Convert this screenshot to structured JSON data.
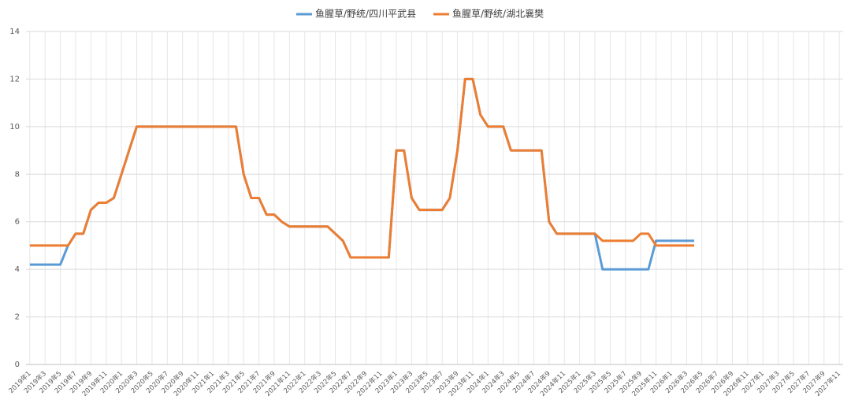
{
  "chart_data": {
    "type": "line",
    "categories": [
      "2019年1",
      null,
      "2019年3",
      null,
      "2019年5",
      null,
      "2019年7",
      null,
      "2019年9",
      null,
      "2019年11",
      null,
      "2020年1",
      null,
      "2020年3",
      null,
      "2020年5",
      null,
      "2020年7",
      null,
      "2020年9",
      null,
      "2020年11",
      null,
      "2021年1",
      null,
      "2021年3",
      null,
      "2021年5",
      null,
      "2021年7",
      null,
      "2021年9",
      null,
      "2021年11",
      null,
      "2022年1",
      null,
      "2022年3",
      null,
      "2022年5",
      null,
      "2022年7",
      null,
      "2022年9",
      null,
      "2022年11",
      null,
      "2023年1",
      null,
      "2023年3",
      null,
      "2023年5",
      null,
      "2023年7",
      null,
      "2023年9",
      null,
      "2023年11",
      null,
      "2024年1",
      null,
      "2024年3",
      null,
      "2024年5",
      null,
      "2024年7",
      null,
      "2024年9",
      null,
      "2024年11",
      null,
      "2025年1",
      null,
      "2025年3",
      null,
      "2025年5",
      null,
      "2025年7",
      null,
      "2025年9",
      null,
      "2025年11",
      null,
      "2026年1",
      null,
      "2026年3",
      null,
      "2026年5",
      null,
      "2026年7",
      null,
      "2026年9",
      null,
      "2026年11",
      null,
      "2027年1",
      null,
      "2027年3",
      null,
      "2027年5",
      null,
      "2027年7",
      null,
      "2027年9",
      null,
      "2027年11"
    ],
    "series": [
      {
        "name": "鱼腥草/野统/四川平武县",
        "color": "#5b9bd5",
        "values": [
          4.2,
          4.2,
          4.2,
          4.2,
          4.2,
          5,
          5.5,
          5.5,
          6.5,
          6.8,
          6.8,
          7,
          8,
          9,
          10,
          10,
          10,
          10,
          10,
          10,
          10,
          10,
          10,
          10,
          10,
          10,
          10,
          10,
          8,
          7,
          7,
          6.3,
          6.3,
          6,
          5.8,
          5.8,
          5.8,
          5.8,
          5.8,
          5.8,
          5.5,
          5.2,
          4.5,
          4.5,
          4.5,
          4.5,
          4.5,
          4.5,
          9,
          9,
          7,
          6.5,
          6.5,
          6.5,
          6.5,
          7,
          9,
          12,
          12,
          10.5,
          10,
          10,
          10,
          9,
          9,
          9,
          9,
          9,
          6,
          5.5,
          5.5,
          5.5,
          5.5,
          5.5,
          5.5,
          4,
          4,
          4,
          4,
          4,
          4,
          4,
          5.2,
          5.2,
          5.2,
          5.2,
          5.2,
          5.2,
          null,
          null,
          null,
          null,
          null,
          null,
          null,
          null,
          null,
          null,
          null,
          null,
          null,
          null,
          null,
          null,
          null,
          null,
          null
        ]
      },
      {
        "name": "鱼腥草/野统/湖北襄樊",
        "color": "#ed7d31",
        "values": [
          5,
          5,
          5,
          5,
          5,
          5,
          5.5,
          5.5,
          6.5,
          6.8,
          6.8,
          7,
          8,
          9,
          10,
          10,
          10,
          10,
          10,
          10,
          10,
          10,
          10,
          10,
          10,
          10,
          10,
          10,
          8,
          7,
          7,
          6.3,
          6.3,
          6,
          5.8,
          5.8,
          5.8,
          5.8,
          5.8,
          5.8,
          5.5,
          5.2,
          4.5,
          4.5,
          4.5,
          4.5,
          4.5,
          4.5,
          9,
          9,
          7,
          6.5,
          6.5,
          6.5,
          6.5,
          7,
          9,
          12,
          12,
          10.5,
          10,
          10,
          10,
          9,
          9,
          9,
          9,
          9,
          6,
          5.5,
          5.5,
          5.5,
          5.5,
          5.5,
          5.5,
          5.2,
          5.2,
          5.2,
          5.2,
          5.2,
          5.5,
          5.5,
          5,
          5,
          5,
          5,
          5,
          5,
          null,
          null,
          null,
          null,
          null,
          null,
          null,
          null,
          null,
          null,
          null,
          null,
          null,
          null,
          null,
          null,
          null,
          null,
          null
        ]
      }
    ],
    "ylim": [
      0,
      14
    ],
    "yticks": [
      0,
      2,
      4,
      6,
      8,
      10,
      12,
      14
    ],
    "grid": true,
    "legend": "top"
  }
}
